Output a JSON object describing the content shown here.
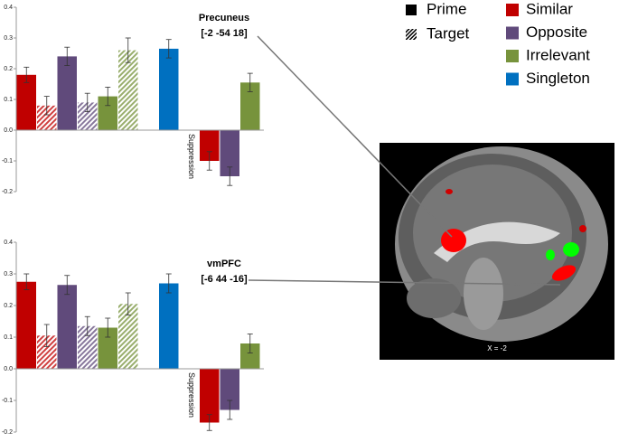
{
  "legend": {
    "patterns": [
      "Prime",
      "Target"
    ],
    "series": [
      {
        "name": "Similar",
        "color": "#c00000"
      },
      {
        "name": "Opposite",
        "color": "#604a7b"
      },
      {
        "name": "Irrelevant",
        "color": "#77933c"
      },
      {
        "name": "Singleton",
        "color": "#0070c0"
      }
    ]
  },
  "chart_data": [
    {
      "type": "bar",
      "title": "Precuneus",
      "subtitle": "[-2 -54 18]",
      "categories": [
        null,
        null,
        "Suppression"
      ],
      "ylim": [
        -0.2,
        0.4
      ],
      "yticks": [
        -0.2,
        -0.1,
        {
          "value": 0,
          "label": "0.0"
        },
        0.1,
        0.2,
        0.3,
        0.4
      ],
      "series": [
        {
          "values": [
            0.18,
            0.08,
            -0.1
          ],
          "errors": [
            0.025,
            0.03,
            0.03
          ]
        },
        {
          "values": [
            0.24,
            0.09,
            -0.15
          ],
          "errors": [
            0.03,
            0.03,
            0.03
          ]
        },
        {
          "values": [
            0.11,
            0.26,
            0.155
          ],
          "errors": [
            0.03,
            0.04,
            0.03
          ]
        },
        {
          "values": [
            0.265,
            null,
            null
          ],
          "errors": [
            0.03,
            null,
            null
          ]
        }
      ]
    },
    {
      "type": "bar",
      "title": "vmPFC",
      "subtitle": "[-6 44 -16]",
      "categories": [
        null,
        null,
        "Suppression"
      ],
      "ylim": [
        -0.2,
        0.4
      ],
      "yticks": [
        -0.2,
        -0.1,
        {
          "value": 0,
          "label": "0.0"
        },
        0.1,
        0.2,
        0.3,
        0.4
      ],
      "series": [
        {
          "values": [
            0.275,
            0.105,
            -0.17
          ],
          "errors": [
            0.025,
            0.035,
            0.025
          ]
        },
        {
          "values": [
            0.265,
            0.135,
            -0.13
          ],
          "errors": [
            0.03,
            0.03,
            0.03
          ]
        },
        {
          "values": [
            0.13,
            0.205,
            0.08
          ],
          "errors": [
            0.03,
            0.035,
            0.03
          ]
        },
        {
          "values": [
            0.27,
            null,
            null
          ],
          "errors": [
            0.03,
            null,
            null
          ]
        }
      ]
    }
  ],
  "image": {
    "label": "X = -2"
  }
}
